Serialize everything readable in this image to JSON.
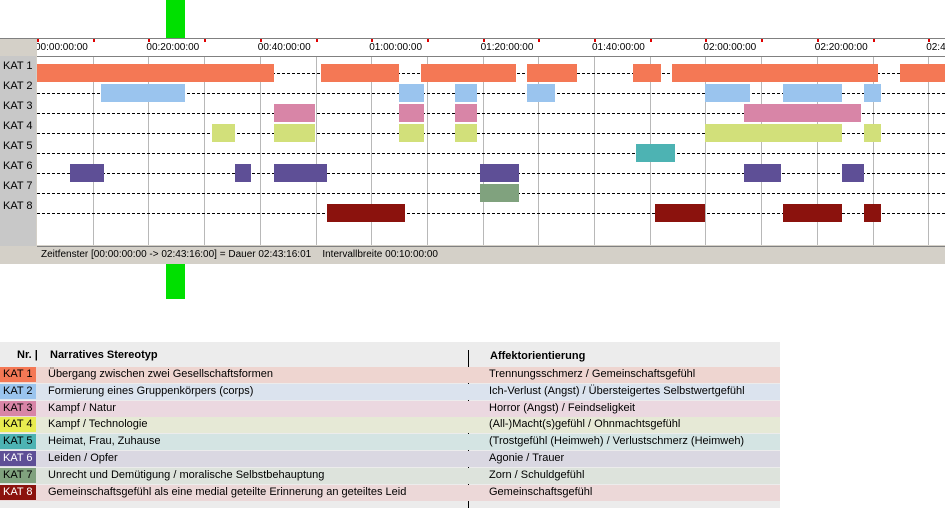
{
  "timeline": {
    "tick_labels": [
      "00:00:00:00",
      "00:20:00:00",
      "00:40:00:00",
      "01:00:00:00",
      "01:20:00:00",
      "01:40:00:00",
      "02:00:00:00",
      "02:20:00:00",
      "02:4"
    ],
    "rows": [
      {
        "label": "KAT 1",
        "color": "#f47855",
        "segments": [
          [
            0,
            42.5
          ],
          [
            51,
            65
          ],
          [
            69,
            86
          ],
          [
            88,
            97
          ],
          [
            107,
            112
          ],
          [
            114,
            151
          ],
          [
            155,
            164
          ]
        ]
      },
      {
        "label": "KAT 2",
        "color": "#9ac4ee",
        "segments": [
          [
            11.5,
            26.5
          ],
          [
            65,
            69.5
          ],
          [
            75,
            79
          ],
          [
            88,
            93
          ],
          [
            120,
            128
          ],
          [
            134,
            144.5
          ],
          [
            148.5,
            151.5
          ]
        ]
      },
      {
        "label": "KAT 3",
        "color": "#d885a7",
        "segments": [
          [
            42.5,
            50
          ],
          [
            65,
            69.5
          ],
          [
            75,
            79
          ],
          [
            127,
            148
          ]
        ]
      },
      {
        "label": "KAT 4",
        "color": "#d2e07a",
        "segments": [
          [
            31.5,
            35.5
          ],
          [
            42.5,
            50
          ],
          [
            65,
            69.5
          ],
          [
            75,
            79
          ],
          [
            120,
            144.5
          ],
          [
            148.5,
            151.5
          ]
        ]
      },
      {
        "label": "KAT 5",
        "color": "#4db3b3",
        "segments": [
          [
            107.5,
            114.5
          ]
        ]
      },
      {
        "label": "KAT 6",
        "color": "#5e4f96",
        "segments": [
          [
            6,
            12
          ],
          [
            35.5,
            38.5
          ],
          [
            42.5,
            52
          ],
          [
            79.5,
            86.5
          ],
          [
            127,
            133.5
          ],
          [
            144.5,
            148.5
          ]
        ]
      },
      {
        "label": "KAT 7",
        "color": "#80a27e",
        "segments": [
          [
            79.5,
            86.5
          ]
        ]
      },
      {
        "label": "KAT 8",
        "color": "#8b120d",
        "segments": [
          [
            52,
            66
          ],
          [
            111,
            120
          ],
          [
            134,
            144.5
          ],
          [
            148.5,
            151.5
          ]
        ]
      }
    ],
    "status_range": "Zeitfenster [00:00:00:00 -> 02:43:16:00] = Dauer 02:43:16:01",
    "status_interval": "Intervallbreite 00:10:00:00"
  },
  "legend": {
    "header_nr": "Nr. |",
    "header_stereotype": "Narratives Stereotyp",
    "header_affect": "Affektorientierung",
    "rows": [
      {
        "cat": "KAT 1",
        "chip_color": "#f47855",
        "row_color": "#eed5d0",
        "stereotype": "Übergang zwischen zwei Gesellschaftsformen",
        "affect": "Trennungsschmerz / Gemeinschaftsgefühl"
      },
      {
        "cat": "KAT 2",
        "chip_color": "#9ac4ee",
        "row_color": "#dbe3ee",
        "stereotype": "Formierung eines Gruppenkörpers (corps)",
        "affect": "Ich-Verlust (Angst) / Übersteigertes Selbstwertgefühl"
      },
      {
        "cat": "KAT 3",
        "chip_color": "#d885a7",
        "row_color": "#ebd8e0",
        "stereotype": "Kampf / Natur",
        "affect": "Horror (Angst) / Feindseligkeit"
      },
      {
        "cat": "KAT 4",
        "chip_color": "#e8ec50",
        "row_color": "#e6e9d6",
        "stereotype": "Kampf / Technologie",
        "affect": "(All-)Macht(s)gefühl / Ohnmachtsgefühl"
      },
      {
        "cat": "KAT 5",
        "chip_color": "#4db3b3",
        "row_color": "#d4e4e3",
        "stereotype": "Heimat, Frau, Zuhause",
        "affect": "(Trostgefühl (Heimweh) / Verlustschmerz (Heimweh)"
      },
      {
        "cat": "KAT 6",
        "chip_color": "#5e4f96",
        "row_color": "#dad8e2",
        "stereotype": "Leiden / Opfer",
        "affect": "Agonie / Trauer"
      },
      {
        "cat": "KAT 7",
        "chip_color": "#80a27e",
        "row_color": "#dde3dc",
        "stereotype": "Unrecht und Demütigung / moralische Selbstbehauptung",
        "affect": "Zorn / Schuldgefühl"
      },
      {
        "cat": "KAT 8",
        "chip_color": "#8b120d",
        "row_color": "#ecd8d8",
        "stereotype": "Gemeinschaftsgefühl als eine medial geteilte Erinnerung an geteiltes Leid",
        "affect": "Gemeinschaftsgefühl"
      }
    ]
  }
}
